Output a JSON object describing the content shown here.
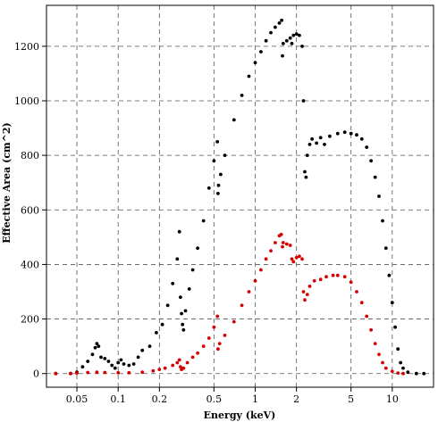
{
  "chart_data": {
    "type": "scatter",
    "title": "",
    "xlabel": "Energy (keV)",
    "ylabel": "Effective Area (cm^2)",
    "x_scale": "log",
    "xlim": [
      0.03,
      20
    ],
    "ylim": [
      -50,
      1350
    ],
    "grid": true,
    "x_ticks": [
      0.05,
      0.1,
      0.2,
      0.5,
      1,
      2,
      5,
      10
    ],
    "x_tick_labels": [
      "0.05",
      "0.1",
      "0.2",
      "0.5",
      "1",
      "2",
      "5",
      "10"
    ],
    "y_ticks": [
      0,
      200,
      400,
      600,
      800,
      1000,
      1200
    ],
    "y_tick_labels": [
      "0",
      "200",
      "400",
      "600",
      "800",
      "1000",
      "1200"
    ],
    "series": [
      {
        "color": "#000000",
        "points": [
          [
            0.035,
            0
          ],
          [
            0.045,
            0
          ],
          [
            0.05,
            5
          ],
          [
            0.055,
            25
          ],
          [
            0.06,
            45
          ],
          [
            0.065,
            70
          ],
          [
            0.068,
            95
          ],
          [
            0.07,
            110
          ],
          [
            0.072,
            100
          ],
          [
            0.075,
            60
          ],
          [
            0.08,
            55
          ],
          [
            0.085,
            45
          ],
          [
            0.09,
            30
          ],
          [
            0.095,
            20
          ],
          [
            0.1,
            40
          ],
          [
            0.105,
            50
          ],
          [
            0.11,
            35
          ],
          [
            0.12,
            30
          ],
          [
            0.13,
            35
          ],
          [
            0.14,
            60
          ],
          [
            0.15,
            85
          ],
          [
            0.17,
            100
          ],
          [
            0.19,
            150
          ],
          [
            0.21,
            180
          ],
          [
            0.23,
            250
          ],
          [
            0.25,
            330
          ],
          [
            0.27,
            420
          ],
          [
            0.28,
            520
          ],
          [
            0.285,
            280
          ],
          [
            0.29,
            220
          ],
          [
            0.295,
            180
          ],
          [
            0.3,
            160
          ],
          [
            0.31,
            230
          ],
          [
            0.33,
            310
          ],
          [
            0.35,
            380
          ],
          [
            0.38,
            460
          ],
          [
            0.42,
            560
          ],
          [
            0.46,
            680
          ],
          [
            0.5,
            780
          ],
          [
            0.53,
            850
          ],
          [
            0.535,
            660
          ],
          [
            0.54,
            690
          ],
          [
            0.56,
            730
          ],
          [
            0.6,
            800
          ],
          [
            0.7,
            930
          ],
          [
            0.8,
            1020
          ],
          [
            0.9,
            1090
          ],
          [
            1.0,
            1140
          ],
          [
            1.1,
            1180
          ],
          [
            1.2,
            1220
          ],
          [
            1.3,
            1250
          ],
          [
            1.4,
            1270
          ],
          [
            1.5,
            1285
          ],
          [
            1.56,
            1295
          ],
          [
            1.58,
            1165
          ],
          [
            1.6,
            1210
          ],
          [
            1.7,
            1220
          ],
          [
            1.8,
            1230
          ],
          [
            1.85,
            1210
          ],
          [
            1.9,
            1240
          ],
          [
            2.0,
            1245
          ],
          [
            2.1,
            1240
          ],
          [
            2.2,
            1200
          ],
          [
            2.25,
            1000
          ],
          [
            2.3,
            740
          ],
          [
            2.35,
            720
          ],
          [
            2.4,
            800
          ],
          [
            2.5,
            840
          ],
          [
            2.6,
            860
          ],
          [
            2.8,
            845
          ],
          [
            3.0,
            865
          ],
          [
            3.2,
            840
          ],
          [
            3.5,
            870
          ],
          [
            4.0,
            880
          ],
          [
            4.5,
            885
          ],
          [
            5.0,
            880
          ],
          [
            5.5,
            875
          ],
          [
            6.0,
            860
          ],
          [
            6.5,
            830
          ],
          [
            7.0,
            780
          ],
          [
            7.5,
            720
          ],
          [
            8.0,
            650
          ],
          [
            8.5,
            560
          ],
          [
            9.0,
            460
          ],
          [
            9.5,
            360
          ],
          [
            10.0,
            260
          ],
          [
            10.5,
            170
          ],
          [
            11.0,
            90
          ],
          [
            11.5,
            40
          ],
          [
            12.0,
            20
          ],
          [
            13.0,
            5
          ],
          [
            15.0,
            0
          ],
          [
            17.0,
            0
          ]
        ]
      },
      {
        "color": "#d40000",
        "points": [
          [
            0.035,
            0
          ],
          [
            0.045,
            0
          ],
          [
            0.05,
            2
          ],
          [
            0.06,
            4
          ],
          [
            0.07,
            5
          ],
          [
            0.08,
            4
          ],
          [
            0.1,
            3
          ],
          [
            0.12,
            3
          ],
          [
            0.15,
            5
          ],
          [
            0.18,
            10
          ],
          [
            0.2,
            15
          ],
          [
            0.22,
            20
          ],
          [
            0.25,
            30
          ],
          [
            0.27,
            40
          ],
          [
            0.28,
            50
          ],
          [
            0.285,
            25
          ],
          [
            0.29,
            15
          ],
          [
            0.3,
            20
          ],
          [
            0.32,
            40
          ],
          [
            0.35,
            60
          ],
          [
            0.38,
            75
          ],
          [
            0.42,
            100
          ],
          [
            0.46,
            130
          ],
          [
            0.5,
            170
          ],
          [
            0.53,
            210
          ],
          [
            0.535,
            90
          ],
          [
            0.55,
            110
          ],
          [
            0.6,
            140
          ],
          [
            0.7,
            190
          ],
          [
            0.8,
            250
          ],
          [
            0.9,
            300
          ],
          [
            1.0,
            340
          ],
          [
            1.1,
            380
          ],
          [
            1.2,
            420
          ],
          [
            1.3,
            450
          ],
          [
            1.4,
            480
          ],
          [
            1.5,
            505
          ],
          [
            1.55,
            510
          ],
          [
            1.58,
            465
          ],
          [
            1.6,
            480
          ],
          [
            1.7,
            475
          ],
          [
            1.8,
            470
          ],
          [
            1.85,
            420
          ],
          [
            1.9,
            410
          ],
          [
            2.0,
            425
          ],
          [
            2.1,
            430
          ],
          [
            2.2,
            420
          ],
          [
            2.25,
            300
          ],
          [
            2.3,
            270
          ],
          [
            2.4,
            290
          ],
          [
            2.5,
            320
          ],
          [
            2.7,
            340
          ],
          [
            3.0,
            345
          ],
          [
            3.3,
            355
          ],
          [
            3.7,
            360
          ],
          [
            4.0,
            360
          ],
          [
            4.5,
            355
          ],
          [
            5.0,
            335
          ],
          [
            5.5,
            300
          ],
          [
            6.0,
            260
          ],
          [
            6.5,
            210
          ],
          [
            7.0,
            160
          ],
          [
            7.5,
            110
          ],
          [
            8.0,
            70
          ],
          [
            8.5,
            40
          ],
          [
            9.0,
            20
          ],
          [
            10.0,
            8
          ],
          [
            11.0,
            2
          ],
          [
            12.0,
            0
          ]
        ]
      }
    ]
  }
}
